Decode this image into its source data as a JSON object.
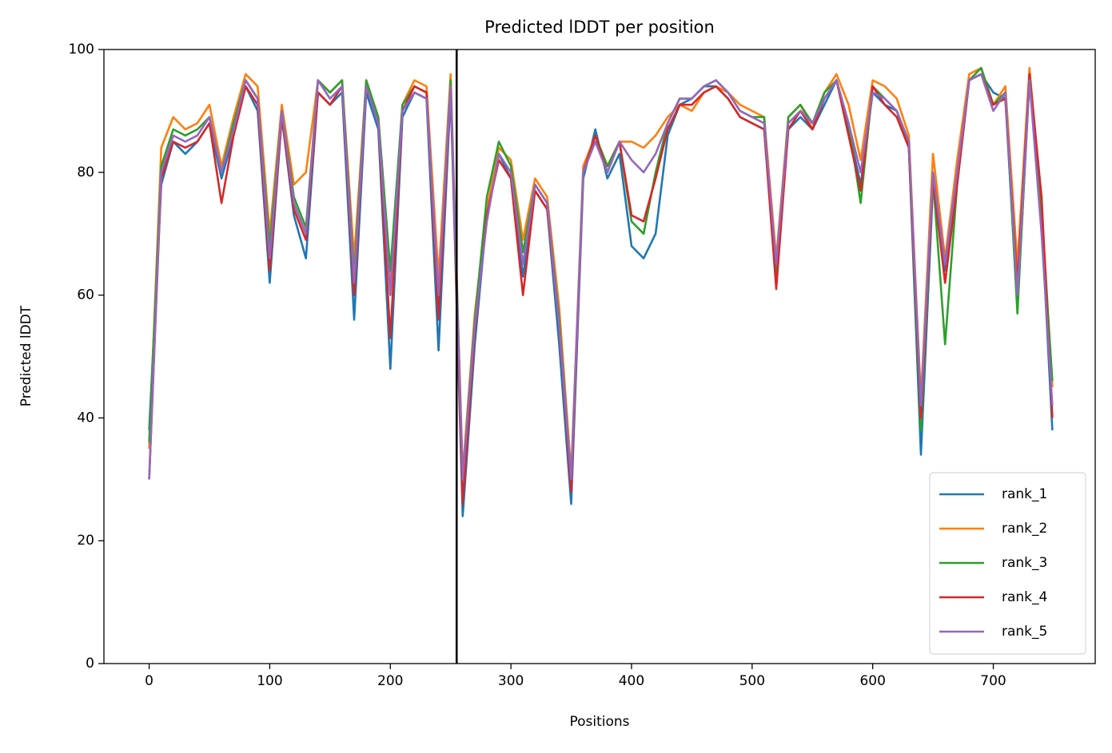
{
  "chart_data": {
    "type": "line",
    "title": "Predicted lDDT per position",
    "xlabel": "Positions",
    "ylabel": "Predicted lDDT",
    "x": [
      0,
      10,
      20,
      30,
      40,
      50,
      60,
      70,
      80,
      90,
      100,
      110,
      120,
      130,
      140,
      150,
      160,
      170,
      180,
      190,
      200,
      210,
      220,
      230,
      240,
      250,
      260,
      270,
      280,
      290,
      300,
      310,
      320,
      330,
      340,
      350,
      360,
      370,
      380,
      390,
      400,
      410,
      420,
      430,
      440,
      450,
      460,
      470,
      480,
      490,
      500,
      510,
      520,
      530,
      540,
      550,
      560,
      570,
      580,
      590,
      600,
      610,
      620,
      630,
      640,
      650,
      660,
      670,
      680,
      690,
      700,
      710,
      720,
      730,
      740,
      749
    ],
    "series": [
      {
        "name": "rank_1",
        "color": "#1f77b4",
        "values": [
          38,
          78,
          85,
          83,
          85,
          88,
          79,
          86,
          94,
          90,
          62,
          89,
          73,
          66,
          93,
          91,
          93,
          56,
          93,
          87,
          48,
          89,
          93,
          92,
          51,
          93,
          24,
          52,
          73,
          83,
          79,
          63,
          77,
          74,
          52,
          26,
          79,
          87,
          79,
          83,
          68,
          66,
          70,
          86,
          91,
          92,
          94,
          94,
          92,
          89,
          88,
          87,
          63,
          87,
          89,
          87,
          91,
          95,
          87,
          78,
          93,
          91,
          90,
          84,
          34,
          78,
          64,
          79,
          95,
          96,
          93,
          92,
          58,
          95,
          72,
          38
        ]
      },
      {
        "name": "rank_2",
        "color": "#ff7f0e",
        "values": [
          35,
          84,
          89,
          87,
          88,
          91,
          81,
          89,
          96,
          94,
          70,
          91,
          78,
          80,
          95,
          93,
          95,
          66,
          95,
          89,
          62,
          91,
          95,
          94,
          63,
          96,
          31,
          57,
          74,
          84,
          82,
          69,
          79,
          76,
          58,
          31,
          81,
          86,
          81,
          85,
          85,
          84,
          86,
          89,
          91,
          90,
          93,
          94,
          93,
          91,
          90,
          89,
          66,
          89,
          91,
          87,
          93,
          96,
          91,
          82,
          95,
          94,
          92,
          86,
          43,
          83,
          66,
          82,
          96,
          97,
          91,
          94,
          65,
          97,
          75,
          45
        ]
      },
      {
        "name": "rank_3",
        "color": "#2ca02c",
        "values": [
          36,
          81,
          87,
          86,
          87,
          89,
          80,
          88,
          95,
          92,
          68,
          90,
          76,
          71,
          95,
          93,
          95,
          63,
          95,
          89,
          64,
          91,
          94,
          93,
          58,
          95,
          30,
          56,
          76,
          85,
          81,
          67,
          78,
          75,
          56,
          30,
          80,
          86,
          81,
          85,
          72,
          70,
          80,
          88,
          92,
          92,
          94,
          95,
          93,
          90,
          89,
          89,
          62,
          89,
          91,
          88,
          93,
          95,
          88,
          75,
          94,
          92,
          90,
          84,
          38,
          79,
          52,
          78,
          95,
          97,
          91,
          93,
          57,
          96,
          73,
          46
        ]
      },
      {
        "name": "rank_4",
        "color": "#d62728",
        "values": [
          30,
          79,
          85,
          84,
          85,
          88,
          75,
          86,
          94,
          91,
          64,
          89,
          74,
          69,
          93,
          91,
          94,
          60,
          94,
          88,
          53,
          90,
          94,
          93,
          56,
          94,
          26,
          54,
          73,
          82,
          79,
          60,
          77,
          74,
          55,
          28,
          80,
          86,
          80,
          85,
          73,
          72,
          79,
          87,
          91,
          91,
          93,
          94,
          92,
          89,
          88,
          87,
          61,
          87,
          90,
          87,
          92,
          95,
          86,
          77,
          94,
          91,
          89,
          84,
          40,
          79,
          62,
          78,
          95,
          96,
          91,
          92,
          62,
          96,
          76,
          40
        ]
      },
      {
        "name": "rank_5",
        "color": "#9467bd",
        "values": [
          30,
          80,
          86,
          85,
          86,
          89,
          80,
          87,
          95,
          92,
          66,
          90,
          75,
          70,
          95,
          92,
          94,
          62,
          94,
          88,
          60,
          90,
          93,
          92,
          60,
          94,
          30,
          55,
          72,
          83,
          80,
          65,
          78,
          75,
          55,
          30,
          80,
          85,
          80,
          85,
          82,
          80,
          83,
          88,
          92,
          92,
          94,
          95,
          93,
          90,
          89,
          88,
          65,
          88,
          90,
          88,
          92,
          95,
          88,
          80,
          93,
          92,
          90,
          85,
          42,
          80,
          65,
          80,
          95,
          96,
          90,
          93,
          60,
          95,
          70,
          42
        ]
      }
    ],
    "vline": 255,
    "vline_color": "#000000",
    "xlim": [
      -37.5,
      784.5
    ],
    "ylim": [
      0,
      100
    ],
    "xticks": [
      0,
      100,
      200,
      300,
      400,
      500,
      600,
      700
    ],
    "yticks": [
      0,
      20,
      40,
      60,
      80,
      100
    ],
    "legend": "lower right"
  }
}
